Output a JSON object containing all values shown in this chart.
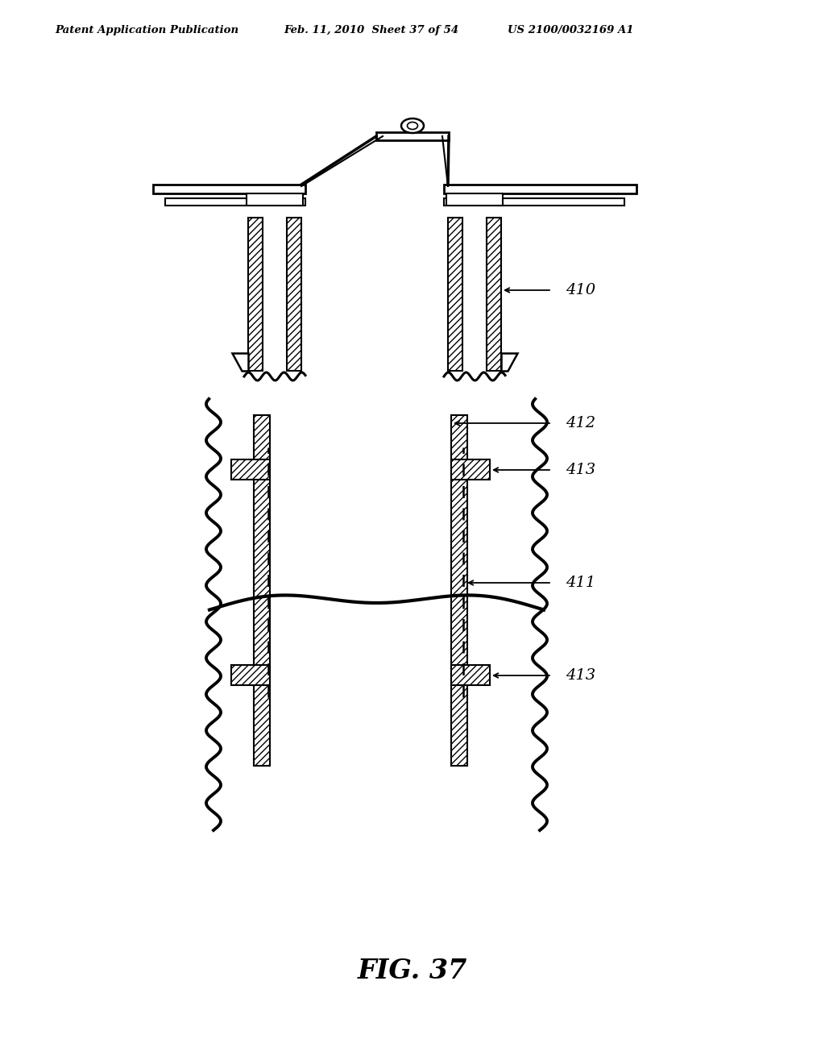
{
  "header_left": "Patent Application Publication",
  "header_mid": "Feb. 11, 2010  Sheet 37 of 54",
  "header_right": "US 2100/0032169 A1",
  "bg_color": "#ffffff",
  "label_410": "410",
  "label_411": "411",
  "label_412": "412",
  "label_413": "413",
  "fig_label": "FIG. 37"
}
